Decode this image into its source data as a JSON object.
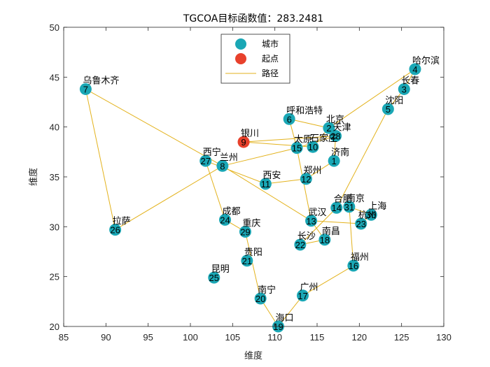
{
  "chart_data": {
    "type": "scatter",
    "title": "TGCOA目标函数值：283.2481",
    "xlabel": "维度",
    "ylabel": "维度",
    "xlim": [
      85,
      130
    ],
    "ylim": [
      20,
      50
    ],
    "xticks": [
      85,
      90,
      95,
      100,
      105,
      110,
      115,
      120,
      125,
      130
    ],
    "yticks": [
      20,
      25,
      30,
      35,
      40,
      45,
      50
    ],
    "grid": false,
    "legend_position": "top-center",
    "legend": [
      {
        "key": "cities",
        "label": "城市",
        "color": "#1aa7b5"
      },
      {
        "key": "start",
        "label": "起点",
        "color": "#e8412c"
      },
      {
        "key": "route",
        "label": "路径",
        "color": "#e3b21c"
      }
    ],
    "cities": [
      {
        "index": 1,
        "name": "济南",
        "x": 117.0,
        "y": 36.6
      },
      {
        "index": 2,
        "name": "北京",
        "x": 116.4,
        "y": 39.9
      },
      {
        "index": 3,
        "name": "长春",
        "x": 125.3,
        "y": 43.8
      },
      {
        "index": 4,
        "name": "哈尔滨",
        "x": 126.6,
        "y": 45.8
      },
      {
        "index": 5,
        "name": "沈阳",
        "x": 123.4,
        "y": 41.8
      },
      {
        "index": 6,
        "name": "呼和浩特",
        "x": 111.7,
        "y": 40.8
      },
      {
        "index": 7,
        "name": "乌鲁木齐",
        "x": 87.6,
        "y": 43.8
      },
      {
        "index": 8,
        "name": "兰州",
        "x": 103.8,
        "y": 36.1
      },
      {
        "index": 9,
        "name": "银川",
        "x": 106.3,
        "y": 38.5
      },
      {
        "index": 10,
        "name": "石家庄",
        "x": 114.5,
        "y": 38.0
      },
      {
        "index": 11,
        "name": "西安",
        "x": 108.9,
        "y": 34.3
      },
      {
        "index": 12,
        "name": "郑州",
        "x": 113.7,
        "y": 34.8
      },
      {
        "index": 13,
        "name": "武汉",
        "x": 114.3,
        "y": 30.6
      },
      {
        "index": 14,
        "name": "合肥",
        "x": 117.3,
        "y": 31.9
      },
      {
        "index": 15,
        "name": "太原",
        "x": 112.6,
        "y": 37.9
      },
      {
        "index": 16,
        "name": "福州",
        "x": 119.3,
        "y": 26.1
      },
      {
        "index": 17,
        "name": "广州",
        "x": 113.3,
        "y": 23.1
      },
      {
        "index": 18,
        "name": "南昌",
        "x": 115.9,
        "y": 28.7
      },
      {
        "index": 19,
        "name": "海口",
        "x": 110.4,
        "y": 20.0
      },
      {
        "index": 20,
        "name": "南宁",
        "x": 108.3,
        "y": 22.8
      },
      {
        "index": 21,
        "name": "贵阳",
        "x": 106.7,
        "y": 26.6
      },
      {
        "index": 22,
        "name": "长沙",
        "x": 113.0,
        "y": 28.2
      },
      {
        "index": 23,
        "name": "杭州",
        "x": 120.2,
        "y": 30.3
      },
      {
        "index": 24,
        "name": "成都",
        "x": 104.1,
        "y": 30.7
      },
      {
        "index": 25,
        "name": "昆明",
        "x": 102.8,
        "y": 24.9
      },
      {
        "index": 26,
        "name": "拉萨",
        "x": 91.1,
        "y": 29.7
      },
      {
        "index": 27,
        "name": "西宁",
        "x": 101.8,
        "y": 36.6
      },
      {
        "index": 28,
        "name": "天津",
        "x": 117.2,
        "y": 39.1
      },
      {
        "index": 29,
        "name": "重庆",
        "x": 106.5,
        "y": 29.5
      },
      {
        "index": 30,
        "name": "上海",
        "x": 121.4,
        "y": 31.2
      },
      {
        "index": 31,
        "name": "南京",
        "x": 118.8,
        "y": 32.0
      }
    ],
    "start_city": 9,
    "route": [
      9,
      10,
      2,
      28,
      1,
      12,
      11,
      27,
      24,
      29,
      20,
      19,
      17,
      16,
      31,
      30,
      23,
      13,
      15,
      6,
      2,
      4,
      3,
      5,
      14,
      22,
      18,
      13,
      8,
      7,
      26,
      8,
      15,
      28,
      9
    ]
  }
}
